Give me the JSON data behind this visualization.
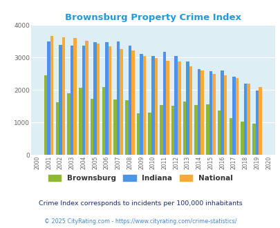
{
  "title": "Brownsburg Property Crime Index",
  "years": [
    2000,
    2001,
    2002,
    2003,
    2004,
    2005,
    2006,
    2007,
    2008,
    2009,
    2010,
    2011,
    2012,
    2013,
    2014,
    2015,
    2016,
    2017,
    2018,
    2019,
    2020
  ],
  "brownsburg": [
    0,
    2450,
    1620,
    1900,
    2080,
    1730,
    2100,
    1720,
    1680,
    1290,
    1300,
    1530,
    1510,
    1650,
    1530,
    1570,
    1370,
    1140,
    1030,
    970,
    0
  ],
  "indiana": [
    0,
    3490,
    3390,
    3360,
    3370,
    3480,
    3480,
    3500,
    3370,
    3110,
    3050,
    3180,
    3040,
    2880,
    2640,
    2590,
    2600,
    2420,
    2190,
    1990,
    0
  ],
  "national": [
    0,
    3670,
    3630,
    3600,
    3520,
    3440,
    3340,
    3270,
    3210,
    3040,
    2980,
    2910,
    2870,
    2720,
    2600,
    2490,
    2450,
    2360,
    2200,
    2100,
    0
  ],
  "brownsburg_color": "#8db735",
  "indiana_color": "#4d94e8",
  "national_color": "#f5aa3a",
  "bg_color": "#ddeef5",
  "ylim": [
    0,
    4000
  ],
  "legend_labels": [
    "Brownsburg",
    "Indiana",
    "National"
  ],
  "subtitle": "Crime Index corresponds to incidents per 100,000 inhabitants",
  "footnote": "© 2025 CityRating.com - https://www.cityrating.com/crime-statistics/",
  "title_color": "#2299dd",
  "subtitle_color": "#1a2a6c",
  "footnote_color": "#4488cc",
  "bar_width": 0.27
}
